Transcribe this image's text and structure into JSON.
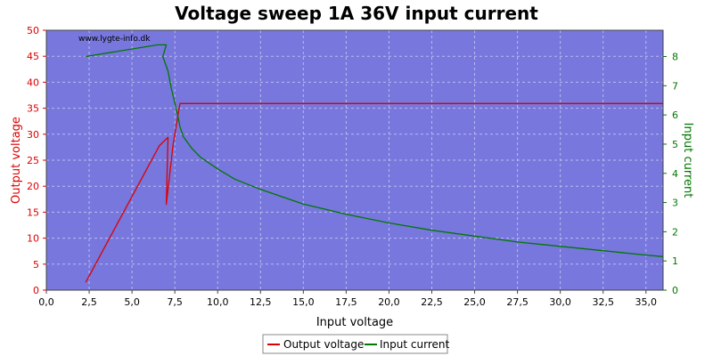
{
  "chart_data": {
    "type": "line",
    "title": "Voltage sweep 1A 36V input current",
    "watermark": "www.lygte-info.dk",
    "xlabel": "Input voltage",
    "ylabel_left": "Output voltage",
    "ylabel_right": "Input current",
    "xlim": [
      0,
      36
    ],
    "ylim_left": [
      0,
      50
    ],
    "ylim_right": [
      0,
      8.9
    ],
    "x_ticks": [
      "0,0",
      "2,5",
      "5,0",
      "7,5",
      "10,0",
      "12,5",
      "15,0",
      "17,5",
      "20,0",
      "22,5",
      "25,0",
      "27,5",
      "30,0",
      "32,5",
      "35,0"
    ],
    "y_left_ticks": [
      "0",
      "5",
      "10",
      "15",
      "20",
      "25",
      "30",
      "35",
      "40",
      "45",
      "50"
    ],
    "y_right_ticks": [
      "0",
      "1",
      "2",
      "3",
      "4",
      "5",
      "6",
      "7",
      "8"
    ],
    "grid": true,
    "legend_position": "bottom-center",
    "colors": {
      "plot_bg": "#7777DD",
      "output_voltage": "#DD0000",
      "input_current": "#007700",
      "grid": "#BBBBEE"
    },
    "series": [
      {
        "name": "Output voltage",
        "axis": "left",
        "color": "#DD0000",
        "x": [
          2.3,
          6.6,
          7.1,
          7.0,
          7.4,
          7.8,
          8.0,
          36.0
        ],
        "y": [
          1.5,
          27.8,
          29.4,
          16.5,
          28.0,
          35.9,
          35.9,
          35.9
        ]
      },
      {
        "name": "Input current",
        "axis": "right",
        "color": "#007700",
        "x": [
          2.3,
          6.5,
          7.0,
          6.8,
          7.1,
          7.3,
          7.5,
          7.7,
          7.8,
          8.0,
          8.5,
          9.0,
          10.0,
          11.0,
          12.5,
          15.0,
          17.5,
          20.0,
          22.5,
          25.0,
          27.5,
          30.0,
          32.5,
          35.0,
          36.0
        ],
        "y": [
          8.0,
          8.4,
          8.4,
          8.0,
          7.5,
          6.9,
          6.4,
          5.9,
          5.6,
          5.25,
          4.85,
          4.55,
          4.15,
          3.8,
          3.45,
          2.95,
          2.6,
          2.3,
          2.05,
          1.85,
          1.65,
          1.5,
          1.35,
          1.2,
          1.15
        ]
      }
    ]
  }
}
